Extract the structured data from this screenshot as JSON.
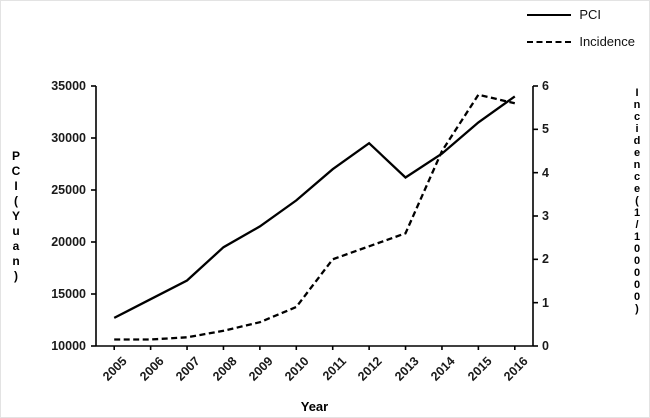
{
  "legend": {
    "pci_label": "PCI",
    "incidence_label": "Incidence"
  },
  "axes": {
    "x_label": "Year",
    "left_label": "PCI(Yuan)",
    "right_label": "Incidence(1/100000)",
    "left_ticks": [
      10000,
      15000,
      20000,
      25000,
      30000,
      35000
    ],
    "right_ticks": [
      0,
      1,
      2,
      3,
      4,
      5,
      6
    ]
  },
  "chart_data": {
    "type": "line",
    "x": [
      "2005",
      "2006",
      "2007",
      "2008",
      "2009",
      "2010",
      "2011",
      "2012",
      "2013",
      "2014",
      "2015",
      "2016"
    ],
    "series": [
      {
        "name": "PCI",
        "axis": "left",
        "style": "solid",
        "values": [
          12700,
          14500,
          16300,
          19500,
          21500,
          24000,
          27000,
          29500,
          26200,
          28500,
          31500,
          34000
        ]
      },
      {
        "name": "Incidence",
        "axis": "right",
        "style": "dashed",
        "values": [
          0.15,
          0.15,
          0.2,
          0.35,
          0.55,
          0.9,
          2.0,
          2.3,
          2.6,
          4.5,
          5.8,
          5.6
        ]
      }
    ],
    "title": "",
    "xlabel": "Year",
    "ylabel_left": "PCI(Yuan)",
    "ylabel_right": "Incidence(1/100000)",
    "left_ylim": [
      10000,
      35000
    ],
    "right_ylim": [
      0,
      6
    ],
    "grid": false,
    "legend_position": "top-right"
  }
}
